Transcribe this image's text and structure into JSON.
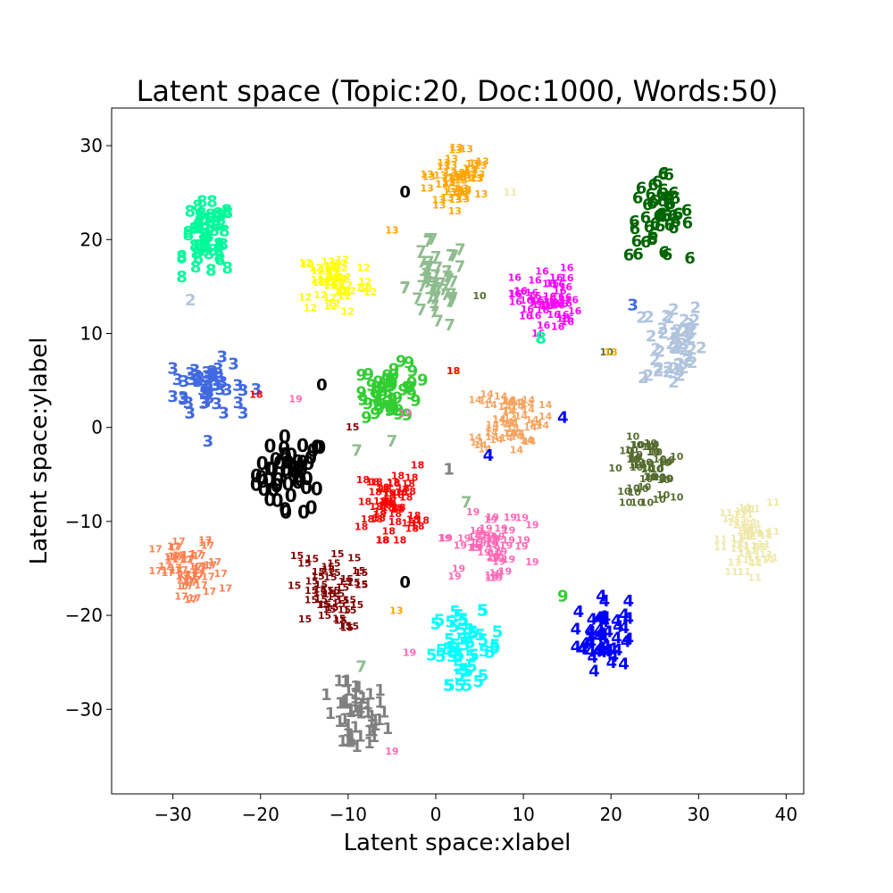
{
  "chart_data": {
    "type": "scatter",
    "title": "Latent space (Topic:20, Doc:1000, Words:50)",
    "xlabel": "Latent space:xlabel",
    "ylabel": "Latent space:ylabel",
    "xlim": [
      -37,
      42
    ],
    "ylim": [
      -39,
      34
    ],
    "xticks": [
      -30,
      -20,
      -10,
      0,
      10,
      20,
      30,
      40
    ],
    "yticks": [
      -30,
      -20,
      -10,
      0,
      10,
      20,
      30
    ],
    "xtick_labels": [
      "−30",
      "−20",
      "−10",
      "0",
      "10",
      "20",
      "30",
      "40"
    ],
    "ytick_labels": [
      "−30",
      "−20",
      "−10",
      "0",
      "10",
      "20",
      "30"
    ],
    "grid": false,
    "marker": "topic number text",
    "clusters": [
      {
        "label": "0",
        "color": "#000000",
        "center": [
          -16.5,
          -5
        ],
        "spread": [
          4,
          4
        ],
        "count": 50,
        "size": 20
      },
      {
        "label": "1",
        "color": "#808080",
        "center": [
          -9,
          -31
        ],
        "spread": [
          3.5,
          4
        ],
        "count": 50,
        "size": 18
      },
      {
        "label": "2",
        "color": "#B0C4DE",
        "center": [
          27,
          9
        ],
        "spread": [
          3.5,
          5
        ],
        "count": 50,
        "size": 18
      },
      {
        "label": "3",
        "color": "#4169E1",
        "center": [
          -26,
          4.5
        ],
        "spread": [
          4,
          3
        ],
        "count": 50,
        "size": 18
      },
      {
        "label": "4",
        "color": "#0000FF",
        "center": [
          19,
          -22
        ],
        "spread": [
          3,
          4
        ],
        "count": 50,
        "size": 18
      },
      {
        "label": "5",
        "color": "#00FFFF",
        "center": [
          3.5,
          -23.5
        ],
        "spread": [
          4,
          4
        ],
        "count": 50,
        "size": 18
      },
      {
        "label": "6",
        "color": "#006400",
        "center": [
          25.5,
          22.5
        ],
        "spread": [
          3.5,
          4.5
        ],
        "count": 50,
        "size": 18
      },
      {
        "label": "7",
        "color": "#8FBC8F",
        "center": [
          0,
          15
        ],
        "spread": [
          3.5,
          5
        ],
        "count": 50,
        "size": 18
      },
      {
        "label": "8",
        "color": "#00FA9A",
        "center": [
          -26,
          20
        ],
        "spread": [
          3,
          4
        ],
        "count": 50,
        "size": 18
      },
      {
        "label": "9",
        "color": "#32CD32",
        "center": [
          -5,
          4
        ],
        "spread": [
          3.5,
          3
        ],
        "count": 50,
        "size": 18
      },
      {
        "label": "10",
        "color": "#556B2F",
        "center": [
          24,
          -4.5
        ],
        "spread": [
          3.5,
          3.5
        ],
        "count": 50,
        "size": 11
      },
      {
        "label": "11",
        "color": "#EEE8AA",
        "center": [
          35.5,
          -12
        ],
        "spread": [
          3,
          4
        ],
        "count": 50,
        "size": 11
      },
      {
        "label": "12",
        "color": "#FFFF00",
        "center": [
          -11.5,
          15.5
        ],
        "spread": [
          4,
          3.5
        ],
        "count": 50,
        "size": 11
      },
      {
        "label": "13",
        "color": "#FFA500",
        "center": [
          2.5,
          26.5
        ],
        "spread": [
          3.5,
          3.5
        ],
        "count": 50,
        "size": 11
      },
      {
        "label": "14",
        "color": "#F4A460",
        "center": [
          8.5,
          1
        ],
        "spread": [
          4,
          3.5
        ],
        "count": 50,
        "size": 11
      },
      {
        "label": "15",
        "color": "#800000",
        "center": [
          -12.5,
          -17.5
        ],
        "spread": [
          4,
          4
        ],
        "count": 50,
        "size": 11
      },
      {
        "label": "16",
        "color": "#FF00FF",
        "center": [
          12.5,
          13.5
        ],
        "spread": [
          3.5,
          3.5
        ],
        "count": 50,
        "size": 11
      },
      {
        "label": "17",
        "color": "#FF7F50",
        "center": [
          -28,
          -15.5
        ],
        "spread": [
          4,
          3.5
        ],
        "count": 50,
        "size": 11
      },
      {
        "label": "18",
        "color": "#FF0000",
        "center": [
          -5,
          -8
        ],
        "spread": [
          3.5,
          4
        ],
        "count": 50,
        "size": 11
      },
      {
        "label": "19",
        "color": "#FF69B4",
        "center": [
          6,
          -12.5
        ],
        "spread": [
          5,
          3.5
        ],
        "count": 50,
        "size": 11
      }
    ],
    "outliers": [
      {
        "label": "0",
        "color": "#000000",
        "x": -3.5,
        "y": 25,
        "size": 18
      },
      {
        "label": "0",
        "color": "#000000",
        "x": -13,
        "y": 4.5,
        "size": 18
      },
      {
        "label": "0",
        "color": "#000000",
        "x": -3.5,
        "y": -16.5,
        "size": 18
      },
      {
        "label": "1",
        "color": "#808080",
        "x": 1.5,
        "y": -4.5,
        "size": 18
      },
      {
        "label": "2",
        "color": "#B0C4DE",
        "x": -28,
        "y": 13.5,
        "size": 18
      },
      {
        "label": "3",
        "color": "#4169E1",
        "x": 22.5,
        "y": 13,
        "size": 18
      },
      {
        "label": "3",
        "color": "#4169E1",
        "x": -26,
        "y": -1.5,
        "size": 18
      },
      {
        "label": "3",
        "color": "#4169E1",
        "x": -20.5,
        "y": 4,
        "size": 18
      },
      {
        "label": "4",
        "color": "#0000FF",
        "x": 14.5,
        "y": 1,
        "size": 18
      },
      {
        "label": "4",
        "color": "#0000FF",
        "x": 6,
        "y": -3,
        "size": 18
      },
      {
        "label": "7",
        "color": "#8FBC8F",
        "x": -9,
        "y": -2.5,
        "size": 18
      },
      {
        "label": "7",
        "color": "#8FBC8F",
        "x": -5,
        "y": -1.5,
        "size": 18
      },
      {
        "label": "7",
        "color": "#8FBC8F",
        "x": 3.5,
        "y": -8,
        "size": 18
      },
      {
        "label": "7",
        "color": "#8FBC8F",
        "x": -8.5,
        "y": -25.5,
        "size": 18
      },
      {
        "label": "8",
        "color": "#00FA9A",
        "x": 12,
        "y": 9.5,
        "size": 18
      },
      {
        "label": "9",
        "color": "#32CD32",
        "x": 14.5,
        "y": -18,
        "size": 18
      },
      {
        "label": "10",
        "color": "#556B2F",
        "x": 5,
        "y": 14,
        "size": 11
      },
      {
        "label": "10",
        "color": "#556B2F",
        "x": 19.5,
        "y": 8,
        "size": 11
      },
      {
        "label": "11",
        "color": "#EEE8AA",
        "x": 8.5,
        "y": 25,
        "size": 11
      },
      {
        "label": "12",
        "color": "#FFFF00",
        "x": 2,
        "y": 6,
        "size": 11
      },
      {
        "label": "13",
        "color": "#FFA500",
        "x": -5,
        "y": 21,
        "size": 11
      },
      {
        "label": "13",
        "color": "#FFA500",
        "x": 20,
        "y": 8,
        "size": 11
      },
      {
        "label": "13",
        "color": "#FFA500",
        "x": -4.5,
        "y": -19.5,
        "size": 11
      },
      {
        "label": "15",
        "color": "#800000",
        "x": -9.5,
        "y": 0,
        "size": 11
      },
      {
        "label": "18",
        "color": "#FF0000",
        "x": -20.5,
        "y": 3.5,
        "size": 11
      },
      {
        "label": "18",
        "color": "#FF0000",
        "x": 2,
        "y": 6,
        "size": 11
      },
      {
        "label": "19",
        "color": "#FF69B4",
        "x": -16,
        "y": 3,
        "size": 11
      },
      {
        "label": "19",
        "color": "#FF69B4",
        "x": -3.5,
        "y": 1.5,
        "size": 11
      },
      {
        "label": "19",
        "color": "#FF69B4",
        "x": -3,
        "y": -24,
        "size": 11
      },
      {
        "label": "19",
        "color": "#FF69B4",
        "x": -5,
        "y": -34.5,
        "size": 11
      }
    ]
  }
}
